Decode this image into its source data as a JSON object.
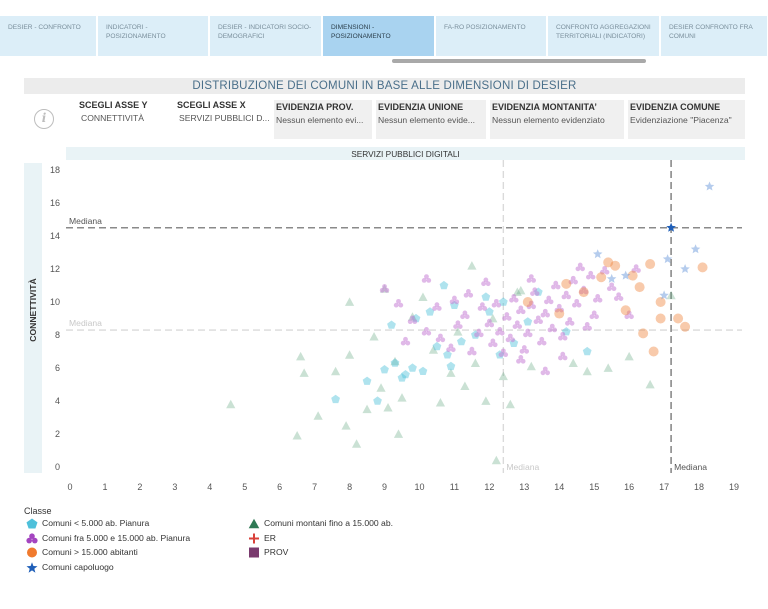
{
  "tabs": [
    {
      "label": "DESIER - CONFRONTO",
      "active": false
    },
    {
      "label": "INDICATORI - POSIZIONAMENTO",
      "active": false
    },
    {
      "label": "DESIER - INDICATORI SOCIO-DEMOGRAFICI",
      "active": false
    },
    {
      "label": "DIMENSIONI - POSIZIONAMENTO",
      "active": true
    },
    {
      "label": "FA-RO POSIZIONAMENTO",
      "active": false
    },
    {
      "label": "CONFRONTO AGGREGAZIONI TERRITORIALI (INDICATORI)",
      "active": false
    },
    {
      "label": "DESIER CONFRONTO FRA COMUNI",
      "active": false
    }
  ],
  "title": "DISTRIBUZIONE DEI COMUNI IN BASE ALLE DIMENSIONI DI DESIER",
  "info_icon": "i",
  "filters": [
    {
      "label": "SCEGLI ASSE Y",
      "value": "CONNETTIVITÀ"
    },
    {
      "label": "SCEGLI ASSE X",
      "value": "SERVIZI PUBBLICI D..."
    },
    {
      "label": "EVIDENZIA PROV.",
      "value": "Nessun elemento evi..."
    },
    {
      "label": "EVIDENZIA UNIONE",
      "value": "Nessun elemento evide..."
    },
    {
      "label": "EVIDENZIA MONTANITA’",
      "value": "Nessun elemento evidenziato"
    },
    {
      "label": "EVIDENZIA COMUNE",
      "value": "Evidenziazione \"Piacenza\""
    }
  ],
  "chart_data": {
    "type": "scatter",
    "xlabel": "SERVIZI PUBBLICI DIGITALI",
    "ylabel": "CONNETTIVITÀ",
    "xlim": [
      0,
      19
    ],
    "ylim": [
      0,
      18
    ],
    "xticks": [
      0,
      1,
      2,
      3,
      4,
      5,
      6,
      7,
      8,
      9,
      10,
      11,
      12,
      13,
      14,
      15,
      16,
      17,
      18,
      19
    ],
    "yticks": [
      0,
      2,
      4,
      6,
      8,
      10,
      12,
      14,
      16,
      18
    ],
    "reference_lines": [
      {
        "axis": "y",
        "value": 14.5,
        "label": "Mediana",
        "emphasis": "strong"
      },
      {
        "axis": "y",
        "value": 8.3,
        "label": "Mediana",
        "emphasis": "faded"
      },
      {
        "axis": "x",
        "value": 17.2,
        "label": "Mediana",
        "emphasis": "strong"
      },
      {
        "axis": "x",
        "value": 12.4,
        "label": "Mediana",
        "emphasis": "faded"
      }
    ],
    "highlight": {
      "name": "Piacenza",
      "x": 17.2,
      "y": 14.5
    },
    "series": [
      {
        "name": "Comuni < 5.000 ab. Pianura",
        "color": "#4ec0da",
        "marker": "pentagon",
        "points": [
          [
            7.6,
            4.1
          ],
          [
            8.5,
            5.2
          ],
          [
            9.0,
            5.9
          ],
          [
            9.3,
            6.3
          ],
          [
            9.6,
            5.6
          ],
          [
            9.8,
            6.0
          ],
          [
            10.1,
            5.8
          ],
          [
            10.5,
            7.3
          ],
          [
            10.8,
            6.8
          ],
          [
            11.2,
            7.6
          ],
          [
            11.6,
            8.0
          ],
          [
            12.0,
            9.4
          ],
          [
            12.3,
            6.8
          ],
          [
            12.7,
            7.5
          ],
          [
            13.1,
            8.8
          ],
          [
            9.2,
            8.6
          ],
          [
            9.9,
            9.0
          ],
          [
            10.3,
            9.4
          ],
          [
            11.0,
            9.8
          ],
          [
            11.9,
            10.3
          ],
          [
            12.4,
            10.0
          ],
          [
            13.4,
            10.6
          ],
          [
            14.8,
            7.0
          ],
          [
            14.2,
            8.2
          ],
          [
            10.7,
            11.0
          ],
          [
            8.8,
            4.0
          ],
          [
            9.5,
            5.4
          ],
          [
            10.9,
            6.1
          ]
        ]
      },
      {
        "name": "Comuni fra 5.000 e 15.000 ab. Pianura",
        "color": "#c77fd6",
        "marker": "trefoil",
        "points": [
          [
            9.0,
            10.8
          ],
          [
            9.4,
            9.9
          ],
          [
            9.8,
            8.9
          ],
          [
            10.2,
            8.2
          ],
          [
            10.6,
            7.8
          ],
          [
            10.9,
            7.2
          ],
          [
            11.1,
            8.6
          ],
          [
            11.3,
            9.2
          ],
          [
            11.5,
            7.0
          ],
          [
            11.7,
            8.1
          ],
          [
            11.8,
            9.7
          ],
          [
            12.0,
            8.7
          ],
          [
            12.1,
            7.5
          ],
          [
            12.2,
            9.9
          ],
          [
            12.3,
            8.2
          ],
          [
            12.5,
            9.1
          ],
          [
            12.6,
            7.8
          ],
          [
            12.7,
            10.2
          ],
          [
            12.8,
            8.6
          ],
          [
            12.9,
            9.5
          ],
          [
            13.0,
            7.1
          ],
          [
            13.1,
            8.1
          ],
          [
            13.2,
            9.8
          ],
          [
            13.3,
            10.6
          ],
          [
            13.4,
            8.9
          ],
          [
            13.5,
            7.6
          ],
          [
            13.6,
            9.3
          ],
          [
            13.7,
            10.1
          ],
          [
            13.8,
            8.4
          ],
          [
            13.9,
            11.0
          ],
          [
            14.0,
            9.6
          ],
          [
            14.1,
            7.9
          ],
          [
            14.2,
            10.4
          ],
          [
            14.3,
            8.8
          ],
          [
            14.4,
            11.3
          ],
          [
            14.5,
            9.9
          ],
          [
            14.6,
            12.1
          ],
          [
            14.7,
            10.7
          ],
          [
            14.8,
            8.5
          ],
          [
            14.9,
            11.6
          ],
          [
            15.0,
            9.2
          ],
          [
            15.1,
            10.2
          ],
          [
            15.3,
            11.9
          ],
          [
            15.5,
            10.9
          ],
          [
            11.4,
            10.5
          ],
          [
            11.0,
            10.1
          ],
          [
            10.5,
            9.7
          ],
          [
            12.9,
            6.5
          ],
          [
            12.4,
            6.9
          ],
          [
            13.6,
            5.8
          ],
          [
            11.9,
            11.2
          ],
          [
            13.2,
            11.4
          ],
          [
            14.1,
            6.7
          ],
          [
            16.2,
            12.0
          ],
          [
            16.0,
            9.2
          ],
          [
            15.7,
            10.3
          ],
          [
            10.2,
            11.4
          ],
          [
            9.6,
            7.6
          ]
        ]
      },
      {
        "name": "Comuni > 15.000 abitanti",
        "color": "#f08a45",
        "marker": "circle",
        "points": [
          [
            14.2,
            11.1
          ],
          [
            14.7,
            10.6
          ],
          [
            15.2,
            11.5
          ],
          [
            15.6,
            12.2
          ],
          [
            15.9,
            9.5
          ],
          [
            16.3,
            10.9
          ],
          [
            16.6,
            12.3
          ],
          [
            16.9,
            10.0
          ],
          [
            16.4,
            8.1
          ],
          [
            16.7,
            7.0
          ],
          [
            16.9,
            9.0
          ],
          [
            17.4,
            9.0
          ],
          [
            17.6,
            8.5
          ],
          [
            18.1,
            12.1
          ],
          [
            16.1,
            11.6
          ],
          [
            15.4,
            12.4
          ],
          [
            13.1,
            10.0
          ],
          [
            14.0,
            9.3
          ]
        ]
      },
      {
        "name": "Comuni montani fino a 15.000 ab.",
        "color": "#5aa17a",
        "marker": "triangle",
        "points": [
          [
            4.6,
            3.8
          ],
          [
            6.5,
            1.9
          ],
          [
            6.7,
            5.7
          ],
          [
            6.6,
            6.7
          ],
          [
            7.1,
            3.1
          ],
          [
            7.6,
            5.8
          ],
          [
            7.9,
            2.5
          ],
          [
            8.0,
            6.8
          ],
          [
            8.0,
            10.0
          ],
          [
            8.2,
            1.4
          ],
          [
            8.5,
            3.5
          ],
          [
            8.7,
            7.9
          ],
          [
            8.9,
            4.8
          ],
          [
            9.0,
            10.8
          ],
          [
            9.1,
            3.6
          ],
          [
            9.3,
            6.4
          ],
          [
            9.4,
            2.0
          ],
          [
            9.5,
            4.2
          ],
          [
            9.8,
            9.1
          ],
          [
            10.1,
            10.3
          ],
          [
            10.4,
            7.1
          ],
          [
            10.6,
            3.9
          ],
          [
            10.9,
            5.7
          ],
          [
            11.1,
            8.2
          ],
          [
            11.3,
            4.9
          ],
          [
            11.5,
            12.2
          ],
          [
            11.6,
            6.3
          ],
          [
            11.9,
            4.0
          ],
          [
            12.1,
            9.0
          ],
          [
            12.2,
            0.4
          ],
          [
            12.4,
            5.5
          ],
          [
            12.6,
            3.8
          ],
          [
            12.9,
            10.7
          ],
          [
            13.2,
            6.1
          ],
          [
            14.4,
            6.3
          ],
          [
            14.8,
            5.8
          ],
          [
            15.4,
            6.0
          ],
          [
            16.0,
            6.7
          ],
          [
            16.6,
            5.0
          ],
          [
            17.2,
            10.4
          ],
          [
            12.8,
            10.6
          ]
        ]
      },
      {
        "name": "Comuni capoluogo",
        "color": "#5b8fd8",
        "marker": "star",
        "points": [
          [
            15.1,
            12.9
          ],
          [
            15.5,
            11.4
          ],
          [
            15.9,
            11.6
          ],
          [
            17.1,
            12.6
          ],
          [
            17.6,
            12.0
          ],
          [
            17.9,
            13.2
          ],
          [
            18.3,
            17.0
          ],
          [
            17.0,
            10.4
          ]
        ]
      },
      {
        "name": "ER",
        "color": "#d9413a",
        "marker": "cross",
        "points": []
      },
      {
        "name": "PROV",
        "color": "#7a3a6e",
        "marker": "square",
        "points": []
      }
    ]
  },
  "legend": {
    "title": "Classe",
    "items": [
      {
        "name": "Comuni < 5.000 ab. Pianura",
        "color": "#4ec0da",
        "icon": "pentagon-icon"
      },
      {
        "name": "Comuni fra 5.000 e 15.000 ab. Pianura",
        "color": "#a445c0",
        "icon": "trefoil-icon"
      },
      {
        "name": "Comuni > 15.000 abitanti",
        "color": "#f07a2e",
        "icon": "circle-icon"
      },
      {
        "name": "Comuni capoluogo",
        "color": "#1f5fb8",
        "icon": "star-icon"
      },
      {
        "name": "Comuni montani fino a 15.000 ab.",
        "color": "#2f7a55",
        "icon": "triangle-icon"
      },
      {
        "name": "ER",
        "color": "#d9413a",
        "icon": "cross-icon"
      },
      {
        "name": "PROV",
        "color": "#7a3a6e",
        "icon": "square-icon"
      }
    ]
  },
  "highlight_color": "#1f5fb8"
}
